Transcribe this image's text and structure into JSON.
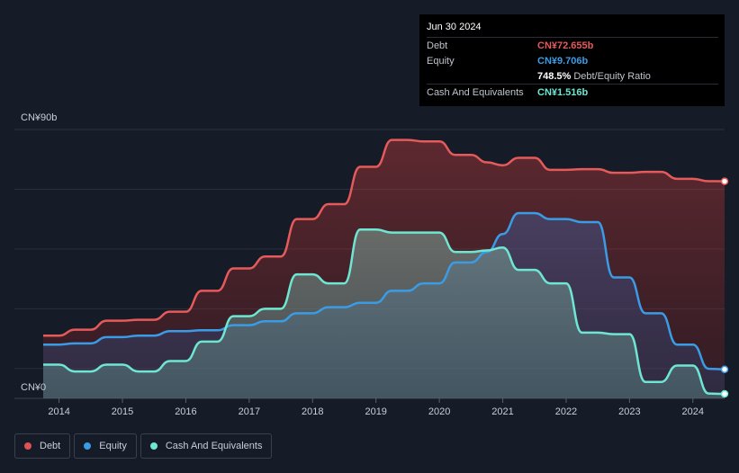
{
  "tooltip": {
    "date": "Jun 30 2024",
    "rows": [
      {
        "label": "Debt",
        "value": "CN¥72.655b",
        "color": "#e55a5a"
      },
      {
        "label": "Equity",
        "value": "CN¥9.706b",
        "color": "#3b9ce6"
      },
      {
        "label": "",
        "value": "748.5%",
        "suffix": "Debt/Equity Ratio",
        "color": "#ffffff"
      },
      {
        "label": "Cash And Equivalents",
        "value": "CN¥1.516b",
        "color": "#6ee7d2"
      }
    ]
  },
  "legend": [
    {
      "label": "Debt",
      "color": "#e05252"
    },
    {
      "label": "Equity",
      "color": "#3b9ce6"
    },
    {
      "label": "Cash And Equivalents",
      "color": "#6ee7d2"
    }
  ],
  "chart_data": {
    "type": "area",
    "ylim": [
      0,
      90
    ],
    "y_tick_labels": [
      "CN¥0",
      "CN¥90b"
    ],
    "x_ticks": [
      "2014",
      "2015",
      "2016",
      "2017",
      "2018",
      "2019",
      "2020",
      "2021",
      "2022",
      "2023",
      "2024"
    ],
    "x_range": [
      2013.75,
      2024.5
    ],
    "grid": true,
    "series": [
      {
        "name": "Debt",
        "color": "#e55a5a",
        "points": [
          [
            2013.75,
            21
          ],
          [
            2014.0,
            21
          ],
          [
            2014.25,
            23
          ],
          [
            2014.5,
            23
          ],
          [
            2014.75,
            26
          ],
          [
            2015.0,
            26
          ],
          [
            2015.25,
            26.3
          ],
          [
            2015.5,
            26.3
          ],
          [
            2015.75,
            29
          ],
          [
            2016.0,
            29
          ],
          [
            2016.25,
            36
          ],
          [
            2016.5,
            36
          ],
          [
            2016.75,
            43.5
          ],
          [
            2017.0,
            43.5
          ],
          [
            2017.25,
            47.5
          ],
          [
            2017.5,
            47.5
          ],
          [
            2017.75,
            60
          ],
          [
            2018.0,
            60
          ],
          [
            2018.25,
            65
          ],
          [
            2018.5,
            65
          ],
          [
            2018.75,
            77.5
          ],
          [
            2019.0,
            77.5
          ],
          [
            2019.25,
            86.5
          ],
          [
            2019.5,
            86.5
          ],
          [
            2019.75,
            86
          ],
          [
            2020.0,
            86
          ],
          [
            2020.25,
            81.5
          ],
          [
            2020.5,
            81.5
          ],
          [
            2020.75,
            79
          ],
          [
            2021.0,
            78
          ],
          [
            2021.25,
            80.5
          ],
          [
            2021.5,
            80.5
          ],
          [
            2021.75,
            76.5
          ],
          [
            2022.0,
            76.5
          ],
          [
            2022.25,
            76.7
          ],
          [
            2022.5,
            76.7
          ],
          [
            2022.75,
            75.5
          ],
          [
            2023.0,
            75.5
          ],
          [
            2023.25,
            75.8
          ],
          [
            2023.5,
            75.8
          ],
          [
            2023.75,
            73.5
          ],
          [
            2024.0,
            73.5
          ],
          [
            2024.25,
            72.7
          ],
          [
            2024.5,
            72.655
          ]
        ]
      },
      {
        "name": "Equity",
        "color": "#3b9ce6",
        "points": [
          [
            2013.75,
            18
          ],
          [
            2014.0,
            18
          ],
          [
            2014.25,
            18.4
          ],
          [
            2014.5,
            18.4
          ],
          [
            2014.75,
            20.5
          ],
          [
            2015.0,
            20.5
          ],
          [
            2015.25,
            21
          ],
          [
            2015.5,
            21
          ],
          [
            2015.75,
            22.5
          ],
          [
            2016.0,
            22.5
          ],
          [
            2016.25,
            22.8
          ],
          [
            2016.5,
            22.8
          ],
          [
            2016.75,
            24.5
          ],
          [
            2017.0,
            24.5
          ],
          [
            2017.25,
            25.8
          ],
          [
            2017.5,
            25.8
          ],
          [
            2017.75,
            28.5
          ],
          [
            2018.0,
            28.5
          ],
          [
            2018.25,
            30.5
          ],
          [
            2018.5,
            30.5
          ],
          [
            2018.75,
            32
          ],
          [
            2019.0,
            32
          ],
          [
            2019.25,
            36
          ],
          [
            2019.5,
            36
          ],
          [
            2019.75,
            38.5
          ],
          [
            2020.0,
            38.5
          ],
          [
            2020.25,
            45.5
          ],
          [
            2020.5,
            45.5
          ],
          [
            2020.75,
            49
          ],
          [
            2021.0,
            55
          ],
          [
            2021.25,
            62
          ],
          [
            2021.5,
            62
          ],
          [
            2021.75,
            60
          ],
          [
            2022.0,
            60
          ],
          [
            2022.25,
            59
          ],
          [
            2022.5,
            59
          ],
          [
            2022.75,
            40.5
          ],
          [
            2023.0,
            40.5
          ],
          [
            2023.25,
            28.5
          ],
          [
            2023.5,
            28.5
          ],
          [
            2023.75,
            18
          ],
          [
            2024.0,
            18
          ],
          [
            2024.25,
            9.9
          ],
          [
            2024.5,
            9.706
          ]
        ]
      },
      {
        "name": "Cash And Equivalents",
        "color": "#6ee7d2",
        "points": [
          [
            2013.75,
            11.3
          ],
          [
            2014.0,
            11.3
          ],
          [
            2014.25,
            9
          ],
          [
            2014.5,
            9
          ],
          [
            2014.75,
            11.3
          ],
          [
            2015.0,
            11.3
          ],
          [
            2015.25,
            9
          ],
          [
            2015.5,
            9
          ],
          [
            2015.75,
            12.5
          ],
          [
            2016.0,
            12.5
          ],
          [
            2016.25,
            19
          ],
          [
            2016.5,
            19
          ],
          [
            2016.75,
            27.5
          ],
          [
            2017.0,
            27.5
          ],
          [
            2017.25,
            30
          ],
          [
            2017.5,
            30
          ],
          [
            2017.75,
            41.5
          ],
          [
            2018.0,
            41.5
          ],
          [
            2018.25,
            38.5
          ],
          [
            2018.5,
            38.5
          ],
          [
            2018.75,
            56.5
          ],
          [
            2019.0,
            56.5
          ],
          [
            2019.25,
            55.5
          ],
          [
            2019.5,
            55.5
          ],
          [
            2019.75,
            55.5
          ],
          [
            2020.0,
            55.5
          ],
          [
            2020.25,
            49
          ],
          [
            2020.5,
            49
          ],
          [
            2020.75,
            49.5
          ],
          [
            2021.0,
            50.5
          ],
          [
            2021.25,
            43
          ],
          [
            2021.5,
            43
          ],
          [
            2021.75,
            38.5
          ],
          [
            2022.0,
            38.5
          ],
          [
            2022.25,
            22
          ],
          [
            2022.5,
            22
          ],
          [
            2022.75,
            21.5
          ],
          [
            2023.0,
            21.5
          ],
          [
            2023.25,
            5.5
          ],
          [
            2023.5,
            5.5
          ],
          [
            2023.75,
            11
          ],
          [
            2024.0,
            11
          ],
          [
            2024.25,
            1.6
          ],
          [
            2024.5,
            1.516
          ]
        ]
      }
    ]
  }
}
